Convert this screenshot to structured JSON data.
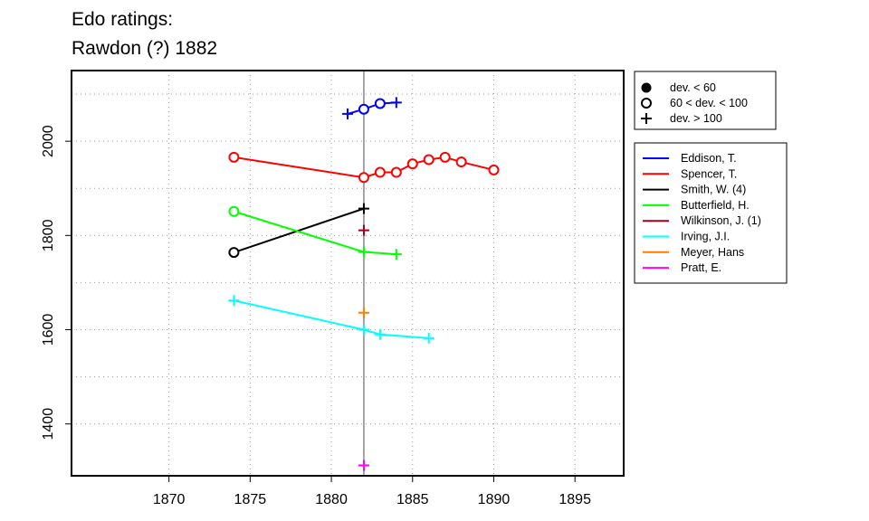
{
  "chart_data": {
    "type": "line",
    "title": [
      "Edo ratings:",
      "Rawdon (?) 1882"
    ],
    "xlim": [
      1864,
      1898
    ],
    "ylim": [
      1290,
      2150
    ],
    "x_ticks": [
      1870,
      1875,
      1880,
      1885,
      1890,
      1895
    ],
    "y_ticks": [
      1400,
      1600,
      1800,
      2000
    ],
    "grid": true,
    "reference_line_x": 1882,
    "marker_legend": [
      {
        "marker": "dot",
        "label": "dev. < 60"
      },
      {
        "marker": "circle",
        "label": "60 < dev. < 100"
      },
      {
        "marker": "plus",
        "label": "dev. > 100"
      }
    ],
    "series": [
      {
        "name": "Eddison, T.",
        "color": "#0000ff",
        "points": [
          {
            "x": 1881,
            "y": 2058,
            "m": "plus"
          },
          {
            "x": 1882,
            "y": 2068,
            "m": "circle"
          },
          {
            "x": 1883,
            "y": 2080,
            "m": "circle"
          },
          {
            "x": 1884,
            "y": 2082,
            "m": "plus"
          }
        ]
      },
      {
        "name": "Spencer, T.",
        "color": "#ff0000",
        "points": [
          {
            "x": 1874,
            "y": 1966,
            "m": "circle"
          },
          {
            "x": 1882,
            "y": 1923,
            "m": "circle"
          },
          {
            "x": 1883,
            "y": 1934,
            "m": "circle"
          },
          {
            "x": 1884,
            "y": 1934,
            "m": "circle"
          },
          {
            "x": 1885,
            "y": 1952,
            "m": "circle"
          },
          {
            "x": 1886,
            "y": 1961,
            "m": "circle"
          },
          {
            "x": 1887,
            "y": 1966,
            "m": "circle"
          },
          {
            "x": 1888,
            "y": 1956,
            "m": "circle"
          },
          {
            "x": 1890,
            "y": 1939,
            "m": "circle"
          }
        ]
      },
      {
        "name": "Smith, W. (4)",
        "color": "#000000",
        "points": [
          {
            "x": 1874,
            "y": 1764,
            "m": "circle"
          },
          {
            "x": 1882,
            "y": 1857,
            "m": "plus"
          }
        ]
      },
      {
        "name": "Butterfield, H.",
        "color": "#00ff00",
        "points": [
          {
            "x": 1874,
            "y": 1851,
            "m": "circle"
          },
          {
            "x": 1882,
            "y": 1765,
            "m": "plus"
          },
          {
            "x": 1884,
            "y": 1760,
            "m": "plus"
          }
        ]
      },
      {
        "name": "Wilkinson, J. (1)",
        "color": "#a0001e",
        "points": [
          {
            "x": 1882,
            "y": 1811,
            "m": "plus"
          }
        ]
      },
      {
        "name": "Irving, J.I.",
        "color": "#00ffff",
        "points": [
          {
            "x": 1874,
            "y": 1662,
            "m": "plus"
          },
          {
            "x": 1882,
            "y": 1600,
            "m": "plus"
          },
          {
            "x": 1883,
            "y": 1590,
            "m": "plus"
          },
          {
            "x": 1886,
            "y": 1582,
            "m": "plus"
          }
        ]
      },
      {
        "name": "Meyer, Hans",
        "color": "#ff7f00",
        "points": [
          {
            "x": 1882,
            "y": 1636,
            "m": "plus"
          }
        ]
      },
      {
        "name": "Pratt, E.",
        "color": "#ff00ff",
        "points": [
          {
            "x": 1882,
            "y": 1312,
            "m": "plus"
          }
        ]
      }
    ]
  }
}
